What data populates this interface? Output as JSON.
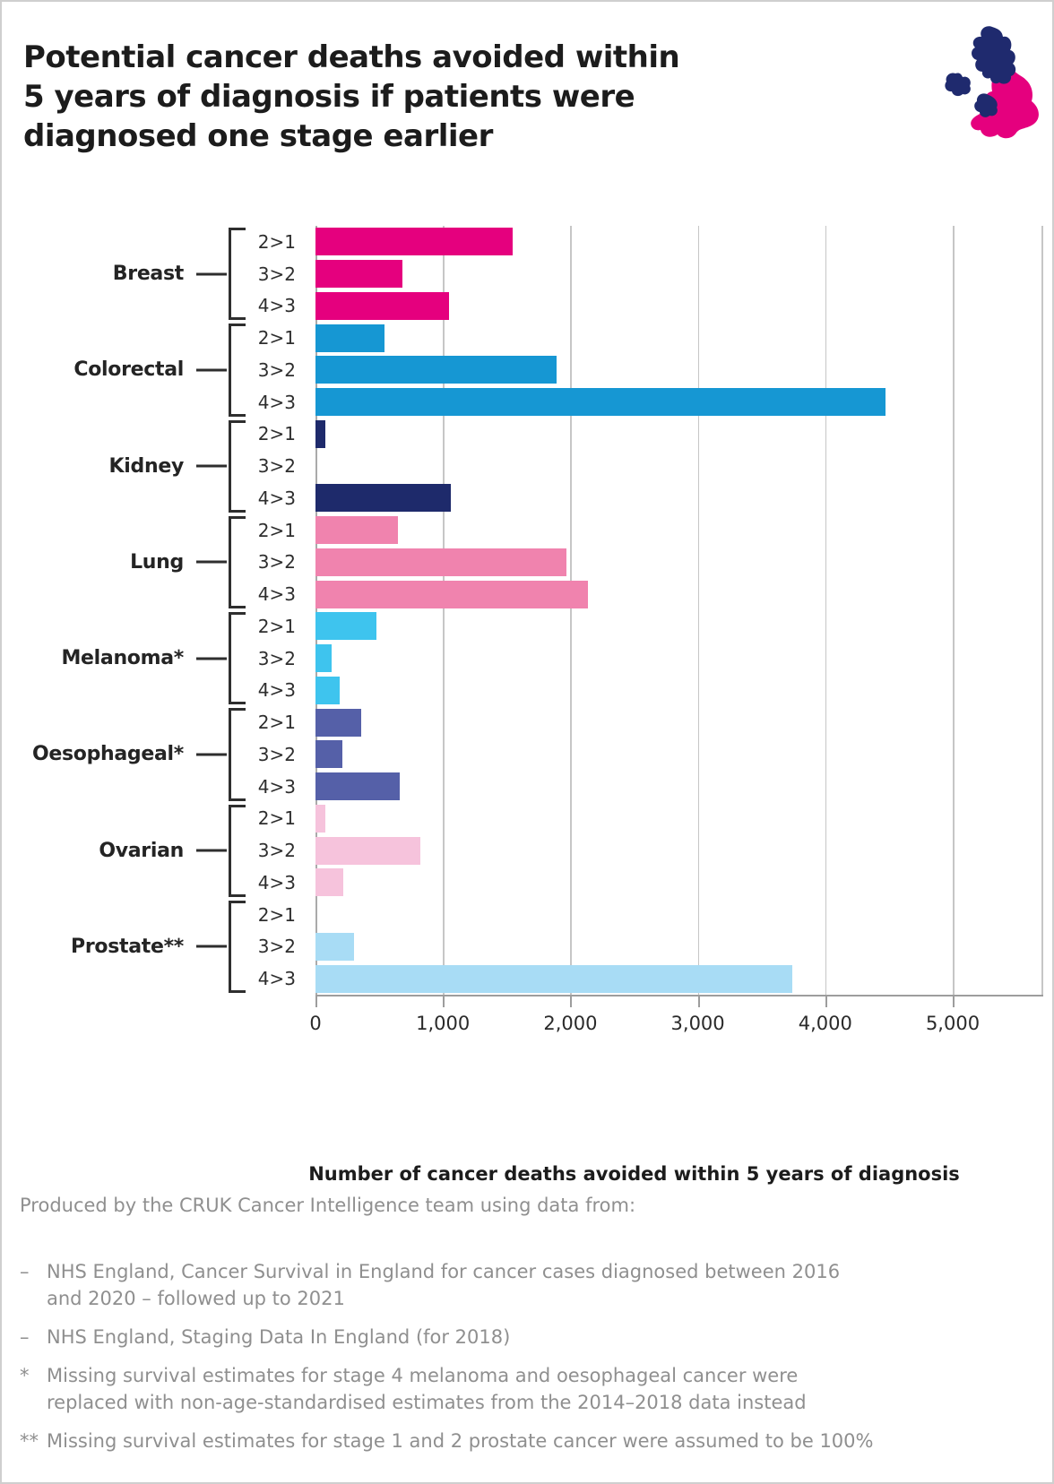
{
  "title": "Potential cancer deaths avoided within 5 years of diagnosis if patients were diagnosed one stage earlier",
  "title_lines": [
    "Potential cancer deaths avoided within",
    "5 years of diagnosis if patients were",
    "diagnosed one stage earlier"
  ],
  "logo": {
    "name": "cruk-uk-map-logo",
    "navy": "#1F2A6E",
    "pink": "#E5007E"
  },
  "chart_data": {
    "type": "bar",
    "orientation": "horizontal",
    "title": "Potential cancer deaths avoided within 5 years of diagnosis if patients were diagnosed one stage earlier",
    "xlabel": "Number of cancer deaths avoided within 5 years of diagnosis",
    "ylabel": "",
    "xlim": [
      0,
      5000
    ],
    "xticks": [
      0,
      1000,
      2000,
      3000,
      4000,
      5000
    ],
    "xtick_labels": [
      "0",
      "1,000",
      "2,000",
      "3,000",
      "4,000",
      "5,000"
    ],
    "grid": true,
    "legend": false,
    "stage_labels": [
      "2>1",
      "3>2",
      "4>3"
    ],
    "groups": [
      {
        "name": "Breast",
        "color": "#E5007E",
        "values": [
          1550,
          680,
          1050
        ]
      },
      {
        "name": "Colorectal",
        "color": "#1697D3",
        "values": [
          540,
          1890,
          4470
        ]
      },
      {
        "name": "Kidney",
        "color": "#1E2A6B",
        "values": [
          80,
          0,
          1060
        ]
      },
      {
        "name": "Lung",
        "color": "#F083AE",
        "values": [
          645,
          1970,
          2140
        ]
      },
      {
        "name": "Melanoma*",
        "color": "#3EC4EE",
        "values": [
          475,
          125,
          190
        ]
      },
      {
        "name": "Oesophageal*",
        "color": "#5560A8",
        "values": [
          360,
          210,
          660
        ]
      },
      {
        "name": "Ovarian",
        "color": "#F6C3DC",
        "values": [
          80,
          820,
          220
        ]
      },
      {
        "name": "Prostate**",
        "color": "#A8DCF5",
        "values": [
          0,
          305,
          3740
        ]
      }
    ]
  },
  "footer": {
    "intro": "Produced by the CRUK Cancer Intelligence team using data from:",
    "items": [
      {
        "prefix": "–",
        "text": "NHS England, Cancer Survival in England for cancer cases diagnosed between 2016 and 2020 – followed up to 2021"
      },
      {
        "prefix": "–",
        "text": "NHS England, Staging Data In England (for 2018)"
      },
      {
        "prefix": "*",
        "text": "Missing survival estimates for stage 4 melanoma and oesophageal cancer were replaced with non-age-standardised estimates from the 2014–2018 data instead"
      },
      {
        "prefix": "**",
        "text": "Missing survival estimates for stage 1 and 2 prostate cancer were assumed to be 100%"
      }
    ]
  }
}
